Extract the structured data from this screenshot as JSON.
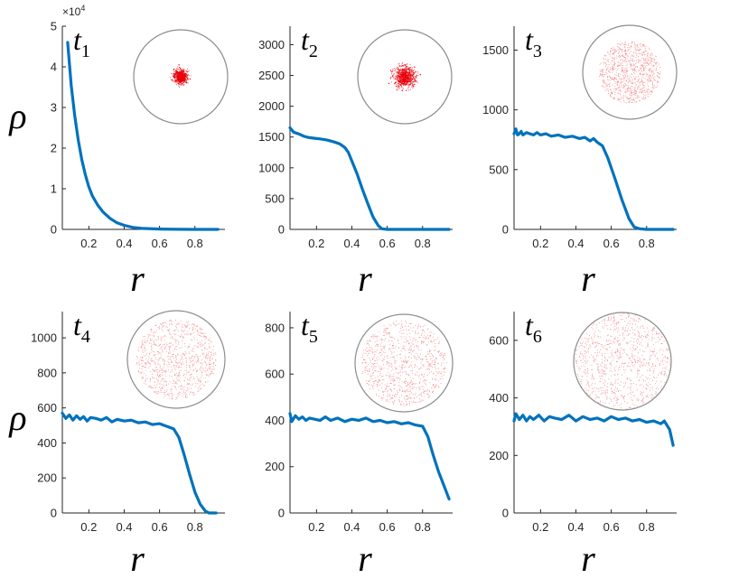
{
  "chart_data": [
    {
      "type": "line",
      "panel_label": "t",
      "panel_label_sub": "1",
      "xlabel": "r",
      "ylabel": "ρ",
      "xticks": [
        "0.2",
        "0.4",
        "0.6",
        "0.8"
      ],
      "yticks": [
        "0",
        "1",
        "2",
        "3",
        "4",
        "5"
      ],
      "ylim": [
        0,
        5
      ],
      "y_multiplier": "×10",
      "y_multiplier_exp": "4",
      "xlim": [
        0.05,
        0.97
      ],
      "x": [
        0.08,
        0.1,
        0.12,
        0.14,
        0.16,
        0.18,
        0.2,
        0.22,
        0.25,
        0.28,
        0.32,
        0.36,
        0.4,
        0.45,
        0.5,
        0.6,
        0.7,
        0.8,
        0.93
      ],
      "values": [
        4.6,
        3.55,
        2.8,
        2.2,
        1.72,
        1.35,
        1.05,
        0.82,
        0.6,
        0.43,
        0.27,
        0.16,
        0.1,
        0.05,
        0.025,
        0.008,
        0.003,
        0.001,
        0.0
      ],
      "inset": {
        "core_fraction": 0.18,
        "spread_fraction": 0.22,
        "dot_density": "high",
        "dot_color": "#e8000b"
      }
    },
    {
      "type": "line",
      "panel_label": "t",
      "panel_label_sub": "2",
      "xlabel": "r",
      "ylabel": "",
      "xticks": [
        "0.2",
        "0.4",
        "0.6",
        "0.8"
      ],
      "yticks": [
        "0",
        "500",
        "1000",
        "1500",
        "2000",
        "2500",
        "3000"
      ],
      "ylim": [
        0,
        3300
      ],
      "xlim": [
        0.05,
        0.97
      ],
      "x": [
        0.05,
        0.07,
        0.1,
        0.13,
        0.16,
        0.19,
        0.22,
        0.26,
        0.3,
        0.33,
        0.36,
        0.38,
        0.4,
        0.43,
        0.46,
        0.49,
        0.52,
        0.55,
        0.57,
        0.6,
        0.65,
        0.7,
        0.8,
        0.95
      ],
      "values": [
        1650,
        1580,
        1550,
        1510,
        1490,
        1480,
        1470,
        1450,
        1420,
        1390,
        1330,
        1250,
        1110,
        900,
        650,
        420,
        200,
        60,
        10,
        0,
        0,
        0,
        0,
        0
      ],
      "inset": {
        "core_fraction": 0.32,
        "spread_fraction": 0.3,
        "dot_density": "medium",
        "dot_color": "#e8000b"
      }
    },
    {
      "type": "line",
      "panel_label": "t",
      "panel_label_sub": "3",
      "xlabel": "r",
      "ylabel": "",
      "xticks": [
        "0.2",
        "0.4",
        "0.6",
        "0.8"
      ],
      "yticks": [
        "0",
        "500",
        "1000",
        "1500"
      ],
      "ylim": [
        0,
        1700
      ],
      "xlim": [
        0.05,
        0.97
      ],
      "x": [
        0.05,
        0.06,
        0.07,
        0.08,
        0.09,
        0.1,
        0.12,
        0.14,
        0.16,
        0.18,
        0.2,
        0.23,
        0.26,
        0.3,
        0.34,
        0.38,
        0.42,
        0.45,
        0.48,
        0.5,
        0.52,
        0.55,
        0.58,
        0.62,
        0.66,
        0.7,
        0.73,
        0.76,
        0.8,
        0.9,
        0.95
      ],
      "values": [
        800,
        840,
        790,
        800,
        820,
        790,
        810,
        800,
        790,
        810,
        790,
        800,
        780,
        790,
        770,
        780,
        760,
        770,
        740,
        760,
        730,
        700,
        600,
        430,
        250,
        90,
        20,
        5,
        0,
        0,
        0
      ],
      "inset": {
        "core_fraction": 0.0,
        "spread_fraction": 0.66,
        "dot_density": "low",
        "dot_color": "#f08080"
      }
    },
    {
      "type": "line",
      "panel_label": "t",
      "panel_label_sub": "4",
      "xlabel": "r",
      "ylabel": "ρ",
      "xticks": [
        "0.2",
        "0.4",
        "0.6",
        "0.8"
      ],
      "yticks": [
        "0",
        "200",
        "400",
        "600",
        "800",
        "1000"
      ],
      "ylim": [
        0,
        1150
      ],
      "xlim": [
        0.05,
        0.97
      ],
      "x": [
        0.05,
        0.07,
        0.09,
        0.11,
        0.13,
        0.15,
        0.17,
        0.19,
        0.21,
        0.24,
        0.27,
        0.3,
        0.33,
        0.36,
        0.4,
        0.44,
        0.48,
        0.52,
        0.56,
        0.6,
        0.64,
        0.68,
        0.71,
        0.74,
        0.77,
        0.8,
        0.83,
        0.86,
        0.88,
        0.92
      ],
      "values": [
        570,
        540,
        560,
        530,
        555,
        535,
        550,
        525,
        545,
        540,
        530,
        545,
        520,
        535,
        525,
        530,
        515,
        520,
        505,
        510,
        495,
        480,
        430,
        330,
        220,
        120,
        50,
        10,
        0,
        0
      ],
      "inset": {
        "core_fraction": 0.0,
        "spread_fraction": 0.82,
        "dot_density": "low",
        "dot_color": "#f08080"
      }
    },
    {
      "type": "line",
      "panel_label": "t",
      "panel_label_sub": "5",
      "xlabel": "r",
      "ylabel": "",
      "xticks": [
        "0.2",
        "0.4",
        "0.6",
        "0.8"
      ],
      "yticks": [
        "0",
        "200",
        "400",
        "600",
        "800"
      ],
      "ylim": [
        0,
        870
      ],
      "xlim": [
        0.05,
        0.97
      ],
      "x": [
        0.05,
        0.06,
        0.08,
        0.1,
        0.12,
        0.14,
        0.16,
        0.19,
        0.22,
        0.25,
        0.28,
        0.32,
        0.36,
        0.4,
        0.44,
        0.48,
        0.52,
        0.56,
        0.6,
        0.64,
        0.68,
        0.72,
        0.76,
        0.8,
        0.83,
        0.86,
        0.89,
        0.92,
        0.95
      ],
      "values": [
        430,
        395,
        420,
        405,
        415,
        400,
        410,
        405,
        400,
        415,
        400,
        410,
        395,
        405,
        400,
        410,
        395,
        400,
        390,
        395,
        385,
        390,
        380,
        375,
        330,
        250,
        180,
        120,
        60
      ],
      "inset": {
        "core_fraction": 0.0,
        "spread_fraction": 0.88,
        "dot_density": "low",
        "dot_color": "#f08080"
      }
    },
    {
      "type": "line",
      "panel_label": "t",
      "panel_label_sub": "6",
      "xlabel": "r",
      "ylabel": "",
      "xticks": [
        "0.2",
        "0.4",
        "0.6",
        "0.8"
      ],
      "yticks": [
        "0",
        "200",
        "400",
        "600"
      ],
      "ylim": [
        0,
        700
      ],
      "xlim": [
        0.05,
        0.97
      ],
      "x": [
        0.05,
        0.06,
        0.08,
        0.1,
        0.12,
        0.14,
        0.16,
        0.19,
        0.22,
        0.25,
        0.28,
        0.32,
        0.36,
        0.4,
        0.44,
        0.48,
        0.52,
        0.56,
        0.6,
        0.64,
        0.68,
        0.72,
        0.76,
        0.8,
        0.84,
        0.88,
        0.9,
        0.93,
        0.95
      ],
      "values": [
        320,
        345,
        325,
        340,
        320,
        335,
        325,
        340,
        320,
        335,
        330,
        325,
        340,
        320,
        335,
        325,
        330,
        320,
        335,
        325,
        330,
        320,
        325,
        315,
        320,
        310,
        320,
        290,
        235
      ],
      "inset": {
        "core_fraction": 0.0,
        "spread_fraction": 0.98,
        "dot_density": "low",
        "dot_color": "#f08080"
      }
    }
  ]
}
